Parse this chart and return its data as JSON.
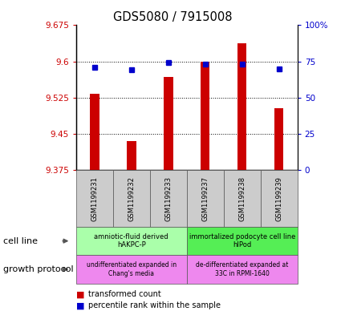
{
  "title": "GDS5080 / 7915008",
  "samples": [
    "GSM1199231",
    "GSM1199232",
    "GSM1199233",
    "GSM1199237",
    "GSM1199238",
    "GSM1199239"
  ],
  "bar_values": [
    9.533,
    9.435,
    9.568,
    9.6,
    9.638,
    9.503
  ],
  "blue_values": [
    71,
    69,
    74,
    73,
    73,
    70
  ],
  "y_min": 9.375,
  "y_max": 9.675,
  "y_ticks": [
    9.375,
    9.45,
    9.525,
    9.6,
    9.675
  ],
  "y_tick_labels": [
    "9.375",
    "9.45",
    "9.525",
    "9.6",
    "9.675"
  ],
  "y2_ticks": [
    0,
    25,
    50,
    75,
    100
  ],
  "y2_tick_labels": [
    "0",
    "25",
    "50",
    "75",
    "100%"
  ],
  "bar_color": "#cc0000",
  "blue_color": "#0000cc",
  "left_tick_color": "#cc0000",
  "right_tick_color": "#0000cc",
  "cell_line_groups": [
    {
      "label": "amniotic-fluid derived\nhAKPC-P",
      "start": 0,
      "end": 3,
      "color": "#aaffaa"
    },
    {
      "label": "immortalized podocyte cell line\nhIPod",
      "start": 3,
      "end": 6,
      "color": "#55ee55"
    }
  ],
  "growth_protocol_groups": [
    {
      "label": "undifferentiated expanded in\nChang's media",
      "start": 0,
      "end": 3,
      "color": "#ee88ee"
    },
    {
      "label": "de-differentiated expanded at\n33C in RPMI-1640",
      "start": 3,
      "end": 6,
      "color": "#ee88ee"
    }
  ],
  "cell_line_label": "cell line",
  "growth_protocol_label": "growth protocol",
  "legend_red_label": "transformed count",
  "legend_blue_label": "percentile rank within the sample",
  "figure_width": 4.31,
  "figure_height": 3.93,
  "bar_width": 0.25
}
